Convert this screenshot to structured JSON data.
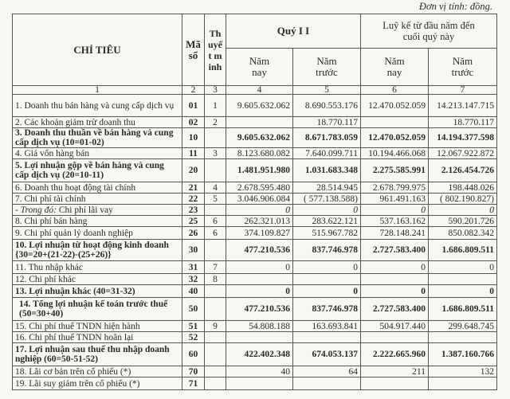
{
  "unit_note": "Đơn vị tính: đồng.",
  "header": {
    "indicator": "CHỈ TIÊU",
    "code": "Mã số",
    "note": "Thuyết minh",
    "quarter": "Quý I I",
    "ytd": "Luỹ kế từ đầu năm đến cuối quý này",
    "this_year": "Năm nay",
    "last_year": "Năm trước",
    "col_numbers": [
      "1",
      "2",
      "3",
      "4",
      "5",
      "6",
      "7"
    ]
  },
  "rows": [
    {
      "label": "1. Doanh thu bán hàng và cung cấp dịch vụ",
      "code": "01",
      "note": "1",
      "q_now": "9.605.632.062",
      "q_prev": "8.690.553.176",
      "y_now": "12.470.052.059",
      "y_prev": "14.213.147.715"
    },
    {
      "label": "2. Các khoản giảm trừ doanh thu",
      "code": "02",
      "note": "2",
      "q_now": "",
      "q_prev": "18.770.117",
      "y_now": "",
      "y_prev": "18.770.117"
    },
    {
      "label": "3. Doanh thu thuần về bán hàng và cung cấp dịch vụ (10=01-02)",
      "code": "10",
      "note": "",
      "q_now": "9.605.632.062",
      "q_prev": "8.671.783.059",
      "y_now": "12.470.052.059",
      "y_prev": "14.194.377.598"
    },
    {
      "label": "4. Giá vốn hàng bán",
      "code": "11",
      "note": "3",
      "q_now": "8.123.680.082",
      "q_prev": "7.640.099.711",
      "y_now": "10.194.466.068",
      "y_prev": "12.067.922.872"
    },
    {
      "label": "5. Lợi nhuận gộp về bán hàng và cung cấp dịch vụ (20=10-11)",
      "code": "20",
      "note": "",
      "q_now": "1.481.951.980",
      "q_prev": "1.031.683.348",
      "y_now": "2.275.585.991",
      "y_prev": "2.126.454.726"
    },
    {
      "label": "6. Doanh thu hoạt động tài chính",
      "code": "21",
      "note": "4",
      "q_now": "2.678.595.480",
      "q_prev": "28.514.945",
      "y_now": "2.678.799.975",
      "y_prev": "198.448.026"
    },
    {
      "label": "7. Chi phí tài chính",
      "code": "22",
      "note": "5",
      "q_now": "3.046.906.084",
      "q_prev": "( 577.138.588)",
      "y_now": "961.491.163",
      "y_prev": "( 802.190.827)"
    },
    {
      "label_prefix": " - Trong đó:",
      "label": " Chi phí lãi vay",
      "code": "23",
      "note": "",
      "q_now": "0",
      "q_prev": "0",
      "y_now": "0",
      "y_prev": "0"
    },
    {
      "label": "8. Chi phí bán hàng",
      "code": "25",
      "note": "6",
      "q_now": "262.321.013",
      "q_prev": "283.622.121",
      "y_now": "537.163.162",
      "y_prev": "590.201.726"
    },
    {
      "label": "9. Chi phí quản lý doanh nghiệp",
      "code": "26",
      "note": "6",
      "q_now": "374.109.827",
      "q_prev": "515.967.782",
      "y_now": "728.148.241",
      "y_prev": "850.082.342"
    },
    {
      "label": "10. Lợi nhuận từ hoạt động kinh doanh {30=20+(21-22)-(25+26)}",
      "code": "30",
      "note": "",
      "q_now": "477.210.536",
      "q_prev": "837.746.978",
      "y_now": "2.727.583.400",
      "y_prev": "1.686.809.511"
    },
    {
      "label": "11. Thu nhập khác",
      "code": "31",
      "note": "7",
      "q_now": "0",
      "q_prev": "0",
      "y_now": "0",
      "y_prev": "0"
    },
    {
      "label": "12. Chi phí khác",
      "code": "32",
      "note": "8",
      "q_now": "",
      "q_prev": "",
      "y_now": "",
      "y_prev": ""
    },
    {
      "label": "13. Lợi nhuận khác (40=31-32)",
      "code": "40",
      "note": "",
      "q_now": "0",
      "q_prev": "0",
      "y_now": "0",
      "y_prev": "0"
    },
    {
      "label": "14. Tổng lợi nhuận kế toán trước thuế (50=30+40)",
      "code": "50",
      "note": "",
      "q_now": "477.210.536",
      "q_prev": "837.746.978",
      "y_now": "2.727.583.400",
      "y_prev": "1.686.809.511"
    },
    {
      "label": "15. Chi phí thuế TNDN hiện hành",
      "code": "51",
      "note": "9",
      "q_now": "54.808.188",
      "q_prev": "163.693.841",
      "y_now": "504.917.440",
      "y_prev": "299.648.745"
    },
    {
      "label": "16. Chi phí thuế TNDN hoãn lại",
      "code": "52",
      "note": "",
      "q_now": "",
      "q_prev": "",
      "y_now": "",
      "y_prev": ""
    },
    {
      "label": "17. Lợi nhuận sau thuế thu nhập doanh nghiệp (60=50-51-52)",
      "code": "60",
      "note": "",
      "q_now": "422.402.348",
      "q_prev": "674.053.137",
      "y_now": "2.222.665.960",
      "y_prev": "1.387.160.766"
    },
    {
      "label": "18. Lãi cơ bản trên cổ phiếu (*)",
      "code": "70",
      "note": "",
      "q_now": "40",
      "q_prev": "64",
      "y_now": "211",
      "y_prev": "132"
    },
    {
      "label": "19. Lãi suy giảm trên cổ phiếu (*)",
      "code": "71",
      "note": "",
      "q_now": "",
      "q_prev": "",
      "y_now": "",
      "y_prev": ""
    }
  ]
}
